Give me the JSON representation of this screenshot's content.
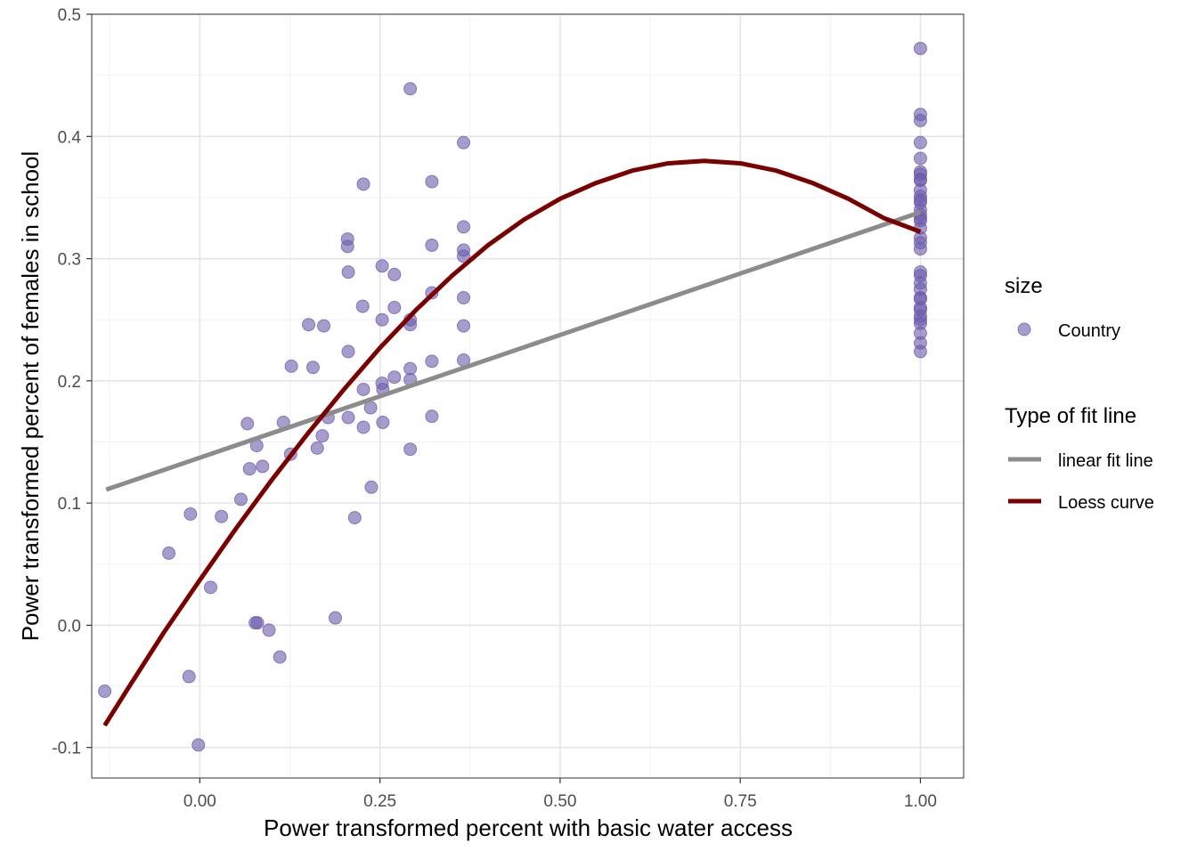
{
  "chart_data": {
    "type": "scatter",
    "xlabel": "Power transformed percent with basic water access",
    "ylabel": "Power transformed percent of females in school",
    "xlim": [
      -0.15,
      1.06
    ],
    "ylim": [
      -0.125,
      0.5
    ],
    "x_ticks": [
      0.0,
      0.25,
      0.5,
      0.75,
      1.0
    ],
    "x_tick_labels": [
      "0.00",
      "0.25",
      "0.50",
      "0.75",
      "1.00"
    ],
    "y_ticks": [
      -0.1,
      0.0,
      0.1,
      0.2,
      0.3,
      0.4,
      0.5
    ],
    "y_tick_labels": [
      "-0.1",
      "0.0",
      "0.1",
      "0.2",
      "0.3",
      "0.4",
      "0.5"
    ],
    "grid": true,
    "colors": {
      "points": "#6d5bab",
      "linear": "#8c8c8c",
      "loess": "#7a0000",
      "grid_major": "#e5e5e5",
      "grid_minor": "#f2f2f2",
      "panel_border": "#333333"
    },
    "series": [
      {
        "name": "Country",
        "kind": "points",
        "x": [
          -0.132,
          -0.043,
          -0.015,
          -0.013,
          -0.002,
          0.015,
          0.03,
          0.057,
          0.066,
          0.069,
          0.077,
          0.079,
          0.08,
          0.087,
          0.096,
          0.111,
          0.116,
          0.126,
          0.127,
          0.151,
          0.157,
          0.163,
          0.17,
          0.172,
          0.178,
          0.188,
          0.205,
          0.205,
          0.206,
          0.206,
          0.206,
          0.215,
          0.226,
          0.227,
          0.227,
          0.227,
          0.237,
          0.238,
          0.253,
          0.253,
          0.253,
          0.254,
          0.254,
          0.27,
          0.27,
          0.27,
          0.292,
          0.292,
          0.292,
          0.292,
          0.292,
          0.292,
          0.322,
          0.322,
          0.322,
          0.322,
          0.322,
          0.366,
          0.366,
          0.366,
          0.366,
          0.366,
          0.366,
          0.366,
          1.0,
          1.0,
          1.0,
          1.0,
          1.0,
          1.0,
          1.0,
          1.0,
          1.0,
          1.0,
          1.0,
          1.0,
          1.0,
          1.0,
          1.0,
          1.0,
          1.0,
          1.0,
          1.0,
          1.0,
          1.0,
          1.0,
          1.0,
          1.0,
          1.0,
          1.0,
          1.0,
          1.0,
          1.0,
          1.0,
          1.0,
          1.0,
          1.0,
          1.0,
          1.0
        ],
        "y": [
          -0.054,
          0.059,
          -0.042,
          0.091,
          -0.098,
          0.031,
          0.089,
          0.103,
          0.165,
          0.128,
          0.002,
          0.147,
          0.002,
          0.13,
          -0.004,
          -0.026,
          0.166,
          0.14,
          0.212,
          0.246,
          0.211,
          0.145,
          0.155,
          0.245,
          0.17,
          0.006,
          0.316,
          0.31,
          0.289,
          0.224,
          0.17,
          0.088,
          0.261,
          0.193,
          0.162,
          0.361,
          0.178,
          0.113,
          0.294,
          0.25,
          0.198,
          0.193,
          0.166,
          0.287,
          0.26,
          0.203,
          0.439,
          0.25,
          0.246,
          0.21,
          0.201,
          0.144,
          0.363,
          0.311,
          0.272,
          0.216,
          0.171,
          0.395,
          0.326,
          0.307,
          0.302,
          0.268,
          0.245,
          0.217,
          0.472,
          0.418,
          0.413,
          0.395,
          0.382,
          0.371,
          0.369,
          0.365,
          0.356,
          0.351,
          0.346,
          0.34,
          0.336,
          0.333,
          0.325,
          0.317,
          0.308,
          0.289,
          0.286,
          0.28,
          0.275,
          0.268,
          0.267,
          0.26,
          0.253,
          0.25,
          0.247,
          0.239,
          0.231,
          0.224,
          0.364,
          0.348,
          0.331,
          0.313,
          0.258
        ]
      },
      {
        "name": "linear fit line",
        "kind": "line",
        "x": [
          -0.13,
          1.0
        ],
        "y": [
          0.111,
          0.338
        ]
      },
      {
        "name": "Loess curve",
        "kind": "line",
        "x": [
          -0.132,
          -0.1,
          -0.05,
          0.0,
          0.05,
          0.1,
          0.15,
          0.2,
          0.25,
          0.3,
          0.35,
          0.4,
          0.45,
          0.5,
          0.55,
          0.6,
          0.65,
          0.7,
          0.75,
          0.8,
          0.85,
          0.9,
          0.95,
          1.0
        ],
        "y": [
          -0.082,
          -0.052,
          -0.006,
          0.037,
          0.079,
          0.119,
          0.157,
          0.193,
          0.227,
          0.258,
          0.286,
          0.311,
          0.332,
          0.349,
          0.362,
          0.372,
          0.378,
          0.38,
          0.378,
          0.372,
          0.362,
          0.349,
          0.333,
          0.322
        ]
      }
    ],
    "legend": {
      "position": "right",
      "groups": [
        {
          "title": "size",
          "entries": [
            {
              "label": "Country",
              "kind": "point"
            }
          ]
        },
        {
          "title": "Type of fit line",
          "entries": [
            {
              "label": "linear fit line",
              "kind": "line",
              "series": "linear"
            },
            {
              "label": "Loess curve",
              "kind": "line",
              "series": "loess"
            }
          ]
        }
      ]
    }
  }
}
